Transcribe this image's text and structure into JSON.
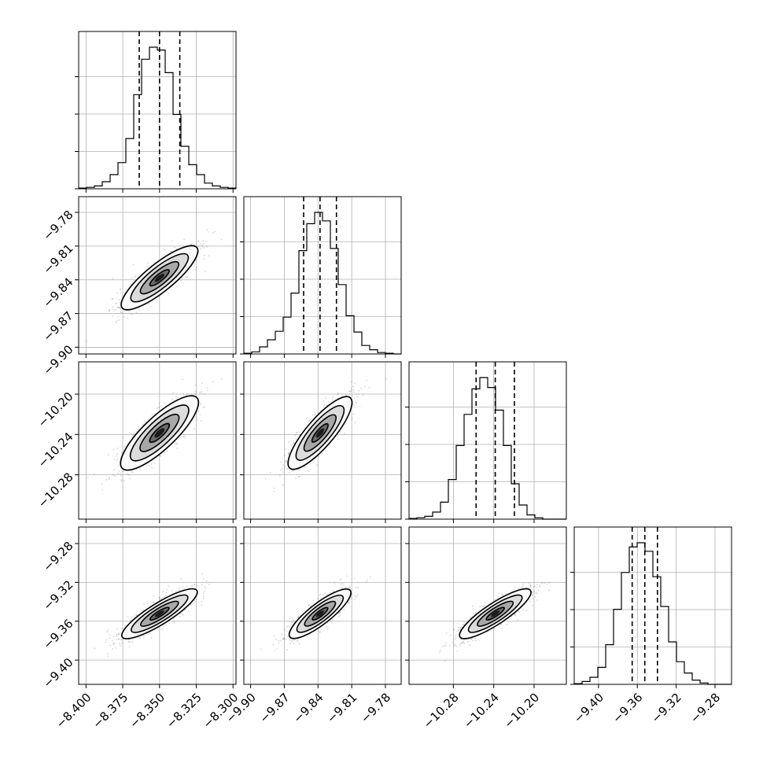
{
  "chart_data": {
    "type": "corner",
    "title": "",
    "grid": true,
    "params": [
      {
        "range": [
          -8.405,
          -8.298
        ],
        "ticks": [
          -8.4,
          -8.375,
          -8.35,
          -8.325,
          -8.3
        ],
        "tick_labels": [
          "−8.400",
          "−8.375",
          "−8.350",
          "−8.325",
          "−8.300"
        ],
        "quantiles": [
          -8.3638,
          -8.35,
          -8.3362
        ]
      },
      {
        "range": [
          -9.906,
          -9.766
        ],
        "ticks": [
          -9.9,
          -9.87,
          -9.84,
          -9.81,
          -9.78
        ],
        "tick_labels": [
          "−9.90",
          "−9.87",
          "−9.84",
          "−9.81",
          "−9.78"
        ],
        "quantiles": [
          -9.8528,
          -9.8382,
          -9.8236
        ]
      },
      {
        "range": [
          -10.324,
          -10.168
        ],
        "ticks": [
          -10.28,
          -10.24,
          -10.2
        ],
        "tick_labels": [
          "−10.28",
          "−10.24",
          "−10.20"
        ],
        "quantiles": [
          -10.2575,
          -10.2385,
          -10.2195
        ]
      },
      {
        "range": [
          -9.425,
          -9.263
        ],
        "ticks": [
          -9.4,
          -9.36,
          -9.32,
          -9.28
        ],
        "tick_labels": [
          "−9.40",
          "−9.36",
          "−9.32",
          "−9.28"
        ],
        "quantiles": [
          -9.3653,
          -9.3523,
          -9.3393
        ]
      }
    ],
    "histograms": [
      [
        0.005,
        0.01,
        0.02,
        0.05,
        0.1,
        0.185,
        0.355,
        0.665,
        0.915,
        1.0,
        0.98,
        0.82,
        0.525,
        0.3,
        0.17,
        0.1,
        0.04,
        0.02,
        0.01,
        0.005
      ],
      [
        0.005,
        0.015,
        0.05,
        0.1,
        0.16,
        0.26,
        0.43,
        0.73,
        0.92,
        1.0,
        0.94,
        0.745,
        0.49,
        0.27,
        0.155,
        0.06,
        0.03,
        0.01,
        0.005,
        0.0
      ],
      [
        0.005,
        0.01,
        0.02,
        0.05,
        0.12,
        0.28,
        0.52,
        0.74,
        0.92,
        1.0,
        0.93,
        0.77,
        0.52,
        0.25,
        0.1,
        0.03,
        0.01,
        0.0,
        0.0,
        0.0
      ],
      [
        0.005,
        0.02,
        0.05,
        0.12,
        0.28,
        0.53,
        0.79,
        0.97,
        1.0,
        0.94,
        0.76,
        0.55,
        0.3,
        0.16,
        0.08,
        0.03,
        0.01,
        0.0,
        0.0,
        0.0
      ]
    ]
  }
}
